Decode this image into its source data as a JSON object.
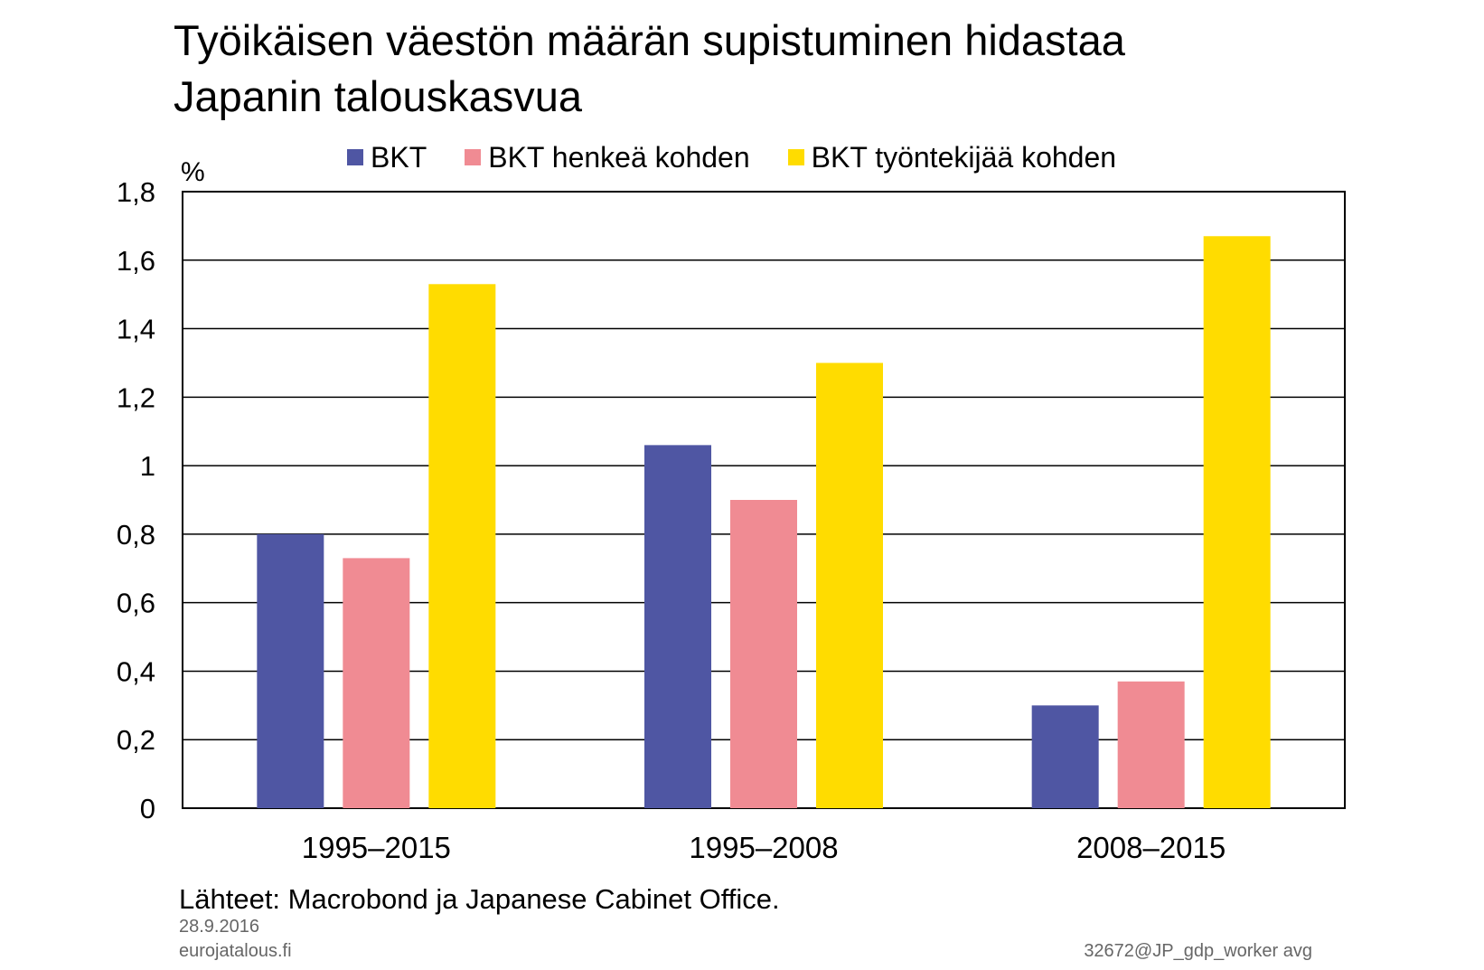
{
  "title_line1": "Työikäisen väestön määrän supistuminen hidastaa",
  "title_line2": "Japanin talouskasvua",
  "unit_label": "%",
  "source": "Lähteet: Macrobond ja Japanese Cabinet Office.",
  "date": "28.9.2016",
  "site": "eurojatalous.fi",
  "code": "32672@JP_gdp_worker avg",
  "chart_data": {
    "type": "bar",
    "title": "Työikäisen väestön määrän supistuminen hidastaa Japanin talouskasvua",
    "ylabel": "%",
    "categories": [
      "1995–2015",
      "1995–2008",
      "2008–2015"
    ],
    "series": [
      {
        "name": "BKT",
        "color": "#4f56a3",
        "values": [
          0.8,
          1.06,
          0.3
        ]
      },
      {
        "name": "BKT henkeä kohden",
        "color": "#f08b93",
        "values": [
          0.73,
          0.9,
          0.37
        ]
      },
      {
        "name": "BKT työntekijää kohden",
        "color": "#ffdc00",
        "values": [
          1.53,
          1.3,
          1.67
        ]
      }
    ],
    "ylim": [
      0,
      1.8
    ],
    "yticks": [
      0,
      0.2,
      0.4,
      0.6,
      0.8,
      1,
      1.2,
      1.4,
      1.6,
      1.8
    ],
    "ytick_labels": [
      "0",
      "0,2",
      "0,4",
      "0,6",
      "0,8",
      "1",
      "1,2",
      "1,4",
      "1,6",
      "1,8"
    ],
    "grid": true,
    "legend_position": "top"
  }
}
